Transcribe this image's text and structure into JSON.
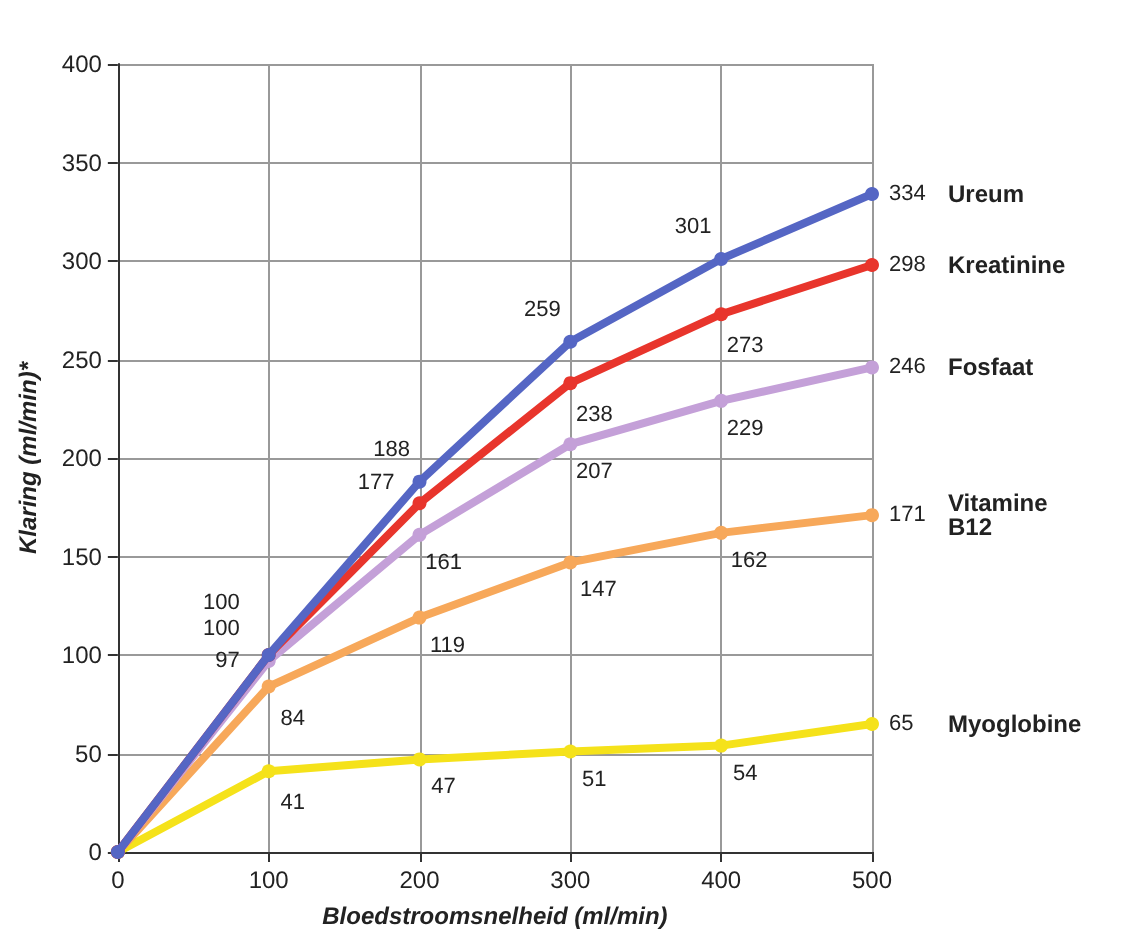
{
  "chart_data": {
    "type": "line",
    "xlabel": "Bloedstroomsnelheid (ml/min)",
    "ylabel": "Klaring (ml/min)*",
    "x": [
      0,
      100,
      200,
      300,
      400,
      500
    ],
    "xlim": [
      0,
      500
    ],
    "xticks": [
      0,
      100,
      200,
      300,
      400,
      500
    ],
    "ylim": [
      0,
      400
    ],
    "yticks": [
      0,
      50,
      100,
      150,
      200,
      250,
      300,
      350,
      400
    ],
    "grid": true,
    "marker": "circle",
    "line_style": "solid",
    "legend": false,
    "series": [
      {
        "name": "Ureum",
        "color": "#5566c4",
        "values": [
          0,
          100,
          188,
          259,
          301,
          334
        ],
        "value_labels": [
          null,
          "100",
          "188",
          "259",
          "301",
          "334"
        ]
      },
      {
        "name": "Kreatinine",
        "color": "#e8352c",
        "values": [
          0,
          100,
          177,
          238,
          273,
          298
        ],
        "value_labels": [
          null,
          "100",
          "177",
          "238",
          "273",
          "298"
        ]
      },
      {
        "name": "Fosfaat",
        "color": "#c4a0d8",
        "values": [
          0,
          97,
          161,
          207,
          229,
          246
        ],
        "value_labels": [
          null,
          "97",
          "161",
          "207",
          "229",
          "246"
        ]
      },
      {
        "name": "Vitamine B12",
        "color": "#f7a85a",
        "values": [
          0,
          84,
          119,
          147,
          162,
          171
        ],
        "value_labels": [
          null,
          "84",
          "119",
          "147",
          "162",
          "171"
        ]
      },
      {
        "name": "Myoglobine",
        "color": "#f5e21a",
        "values": [
          0,
          41,
          47,
          51,
          54,
          65
        ],
        "value_labels": [
          null,
          "41",
          "47",
          "51",
          "54",
          "65"
        ]
      }
    ]
  }
}
